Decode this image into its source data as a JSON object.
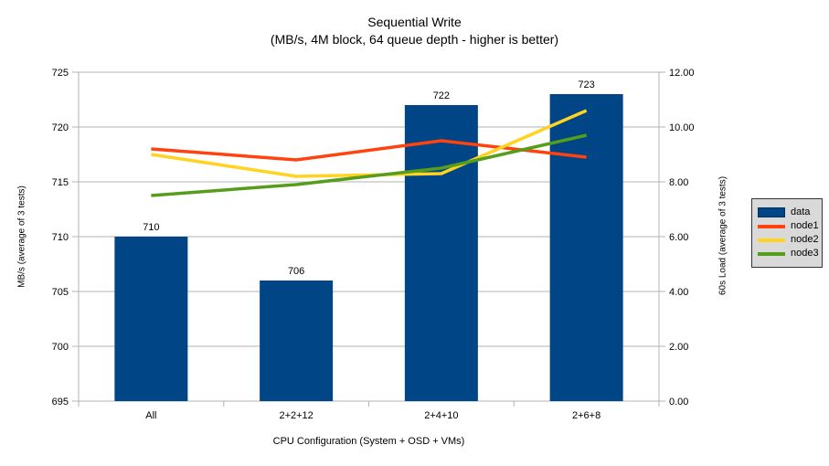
{
  "chart_data": {
    "type": "combo-bar-line",
    "title": "Sequential Write",
    "subtitle": "(MB/s, 4M block, 64 queue depth - higher is better)",
    "xlabel": "CPU Configuration (System + OSD + VMs)",
    "categories": [
      "All",
      "2+2+12",
      "2+4+10",
      "2+6+8"
    ],
    "left_axis": {
      "label": "MB/s (average of 3 tests)",
      "min": 695,
      "max": 725,
      "step": 5,
      "decimals": 0
    },
    "right_axis": {
      "label": "60s Load (average of 3 tests)",
      "min": 0,
      "max": 12,
      "step": 2,
      "decimals": 2
    },
    "bar_series": {
      "name": "data",
      "color": "#004586",
      "axis": "left",
      "values": [
        710,
        706,
        722,
        723
      ],
      "data_labels": [
        710,
        706,
        722,
        723
      ]
    },
    "line_series": [
      {
        "name": "node1",
        "color": "#ff420e",
        "axis": "right",
        "values": [
          9.2,
          8.8,
          9.5,
          8.9
        ]
      },
      {
        "name": "node2",
        "color": "#ffd320",
        "axis": "right",
        "values": [
          9.0,
          8.2,
          8.3,
          10.6
        ]
      },
      {
        "name": "node3",
        "color": "#579d1c",
        "axis": "right",
        "values": [
          7.5,
          7.9,
          8.5,
          9.7
        ]
      }
    ],
    "legend": {
      "position": "right",
      "items": [
        {
          "label": "data",
          "marker": "bar",
          "color": "#004586"
        },
        {
          "label": "node1",
          "marker": "line",
          "color": "#ff420e"
        },
        {
          "label": "node2",
          "marker": "line",
          "color": "#ffd320"
        },
        {
          "label": "node3",
          "marker": "line",
          "color": "#579d1c"
        }
      ]
    },
    "grid": true,
    "colors": {
      "grid": "#b3b3b3",
      "axis": "#b3b3b3",
      "text": "#000000",
      "legend_bg": "#d9d9d9",
      "background": "#ffffff"
    }
  }
}
